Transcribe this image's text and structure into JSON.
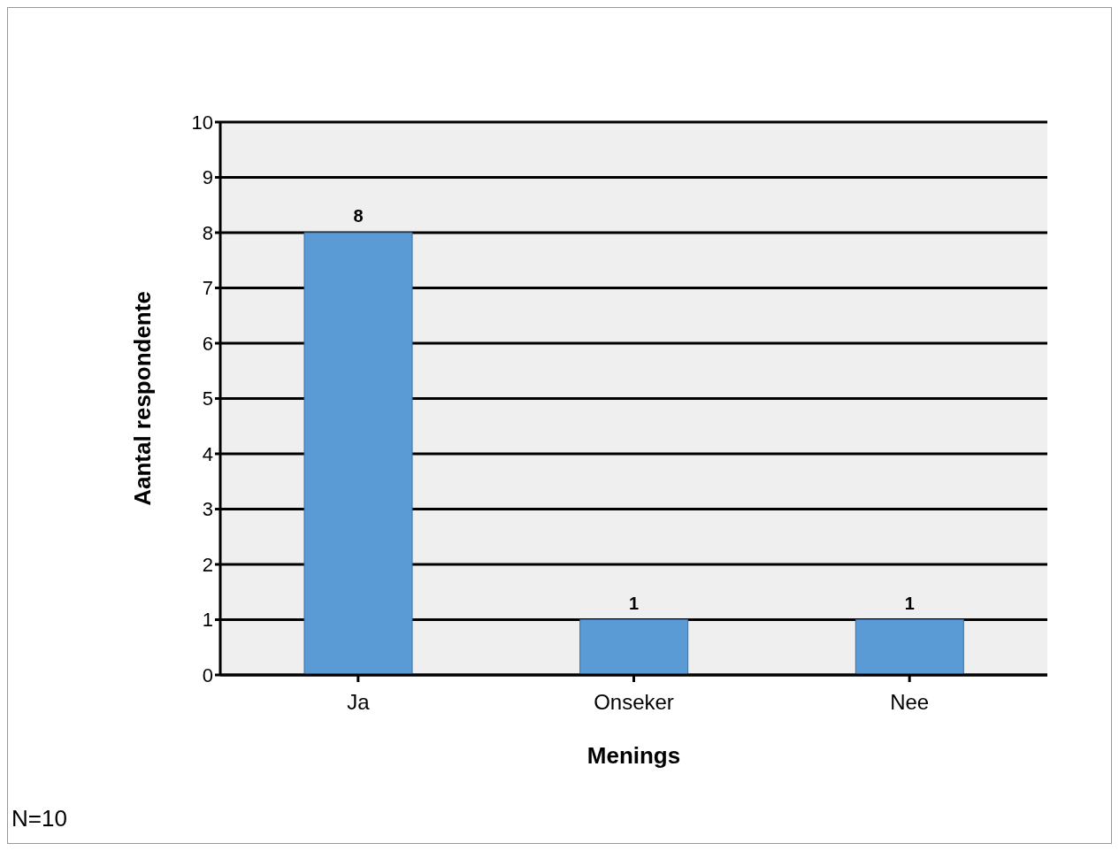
{
  "chart_data": {
    "type": "bar",
    "xlabel": "Menings",
    "ylabel": "Aantal respondente",
    "categories": [
      "Ja",
      "Onseker",
      "Nee"
    ],
    "values": [
      8,
      1,
      1
    ],
    "color": "#5b9bd5",
    "ylim": [
      0,
      10
    ],
    "yticks": [
      0,
      1,
      2,
      3,
      4,
      5,
      6,
      7,
      8,
      9,
      10
    ],
    "grid": "y",
    "data_labels": true,
    "annotations": [
      "N=10"
    ]
  }
}
